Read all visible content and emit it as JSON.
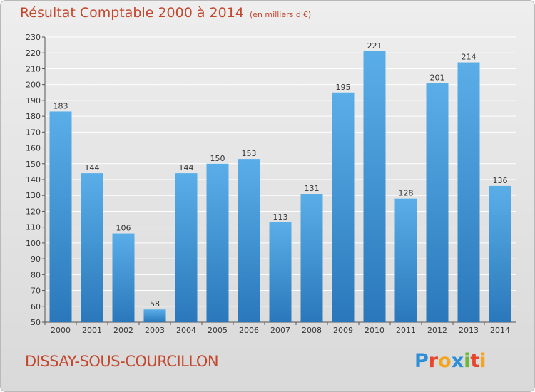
{
  "chart_data": {
    "type": "bar",
    "title": "Résultat Comptable 2000 à 2014",
    "subtitle": "(en milliers d'€)",
    "categories": [
      "2000",
      "2001",
      "2002",
      "2003",
      "2004",
      "2005",
      "2006",
      "2007",
      "2008",
      "2009",
      "2010",
      "2011",
      "2012",
      "2013",
      "2014"
    ],
    "values": [
      183,
      144,
      106,
      58,
      144,
      150,
      153,
      113,
      131,
      195,
      221,
      128,
      201,
      214,
      136
    ],
    "ylim": [
      50,
      230
    ],
    "yticks": [
      50,
      60,
      70,
      80,
      90,
      100,
      110,
      120,
      130,
      140,
      150,
      160,
      170,
      180,
      190,
      200,
      210,
      220,
      230
    ],
    "grid": true,
    "bar_color": "#4a9fdc"
  },
  "footer": {
    "city": "DISSAY-SOUS-COURCILLON",
    "logo_letters": [
      "P",
      "r",
      "o",
      "x",
      "i",
      "t",
      "i"
    ],
    "logo_colors": [
      "#2e8fd8",
      "#e8452c",
      "#f2a51e",
      "#2e8fd8",
      "#6cb83a",
      "#e8452c",
      "#f2a51e"
    ]
  }
}
